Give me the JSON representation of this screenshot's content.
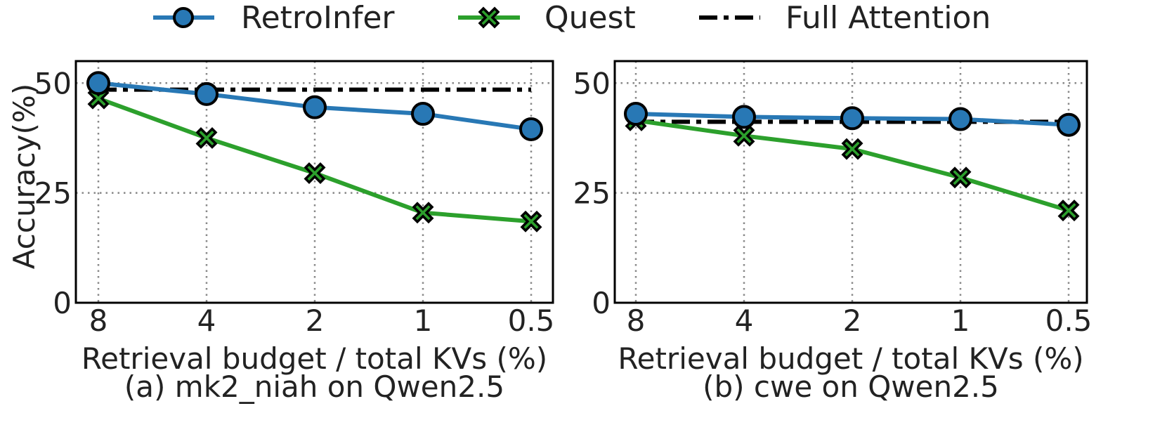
{
  "legend": {
    "items": [
      {
        "label": "RetroInfer",
        "color": "#2878b5",
        "style": "line-circle"
      },
      {
        "label": "Quest",
        "color": "#2ca02c",
        "style": "line-x"
      },
      {
        "label": "Full Attention",
        "color": "#000000",
        "style": "dashdot"
      }
    ]
  },
  "chart_data": [
    {
      "type": "line",
      "title": "(a) mk2_niah on Qwen2.5",
      "xlabel": "Retrieval budget / total KVs (%)",
      "ylabel": "Accuracy(%)",
      "categories": [
        "8",
        "4",
        "2",
        "1",
        "0.5"
      ],
      "x_axis_scale": "log2",
      "ylim": [
        0,
        55
      ],
      "yticks": [
        0,
        25,
        50
      ],
      "grid": true,
      "series": [
        {
          "name": "RetroInfer",
          "values": [
            50,
            47.5,
            44.5,
            43,
            39.5
          ]
        },
        {
          "name": "Quest",
          "values": [
            46.5,
            37.5,
            29.5,
            20.5,
            18.5
          ]
        },
        {
          "name": "Full Attention",
          "values": [
            48.5,
            48.5,
            48.5,
            48.5,
            48.5
          ]
        }
      ]
    },
    {
      "type": "line",
      "title": "(b) cwe on Qwen2.5",
      "xlabel": "Retrieval budget / total KVs (%)",
      "ylabel": "",
      "categories": [
        "8",
        "4",
        "2",
        "1",
        "0.5"
      ],
      "x_axis_scale": "log2",
      "ylim": [
        0,
        55
      ],
      "yticks": [
        0,
        25,
        50
      ],
      "grid": true,
      "series": [
        {
          "name": "RetroInfer",
          "values": [
            43,
            42.3,
            42,
            41.8,
            40.5
          ]
        },
        {
          "name": "Quest",
          "values": [
            41.5,
            38,
            35,
            28.5,
            21
          ]
        },
        {
          "name": "Full Attention",
          "values": [
            41.2,
            41.2,
            41.2,
            41.2,
            41.2
          ]
        }
      ]
    }
  ]
}
